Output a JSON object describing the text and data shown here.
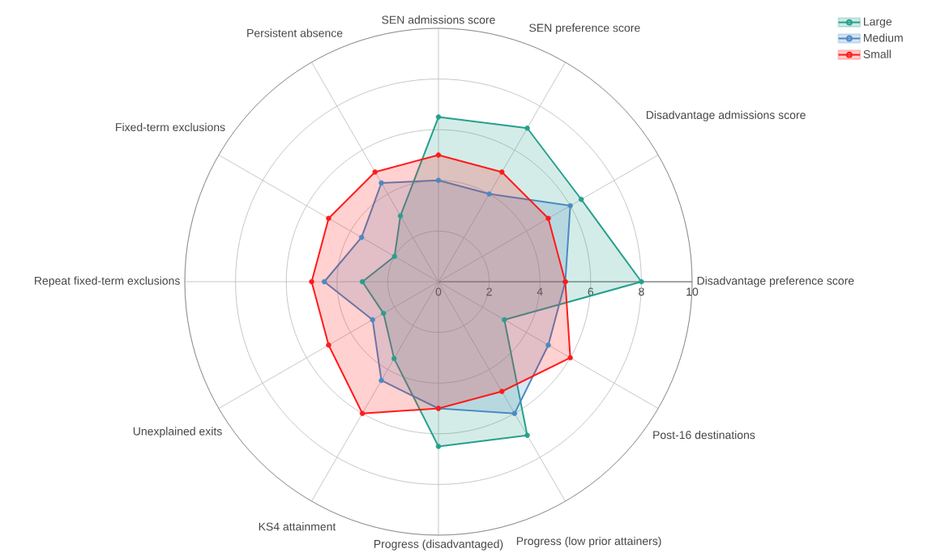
{
  "chart_data": {
    "type": "radar",
    "categories": [
      "SEN admissions score",
      "SEN preference score",
      "Disadvantage admissions score",
      "Disadvantage preference score",
      "Post-16 destinations",
      "Progress (low prior attainers)",
      "Progress (disadvantaged)",
      "KS4 attainment",
      "Unexplained exits",
      "Repeat fixed-term exclusions",
      "Fixed-term exclusions",
      "Persistent absence"
    ],
    "series": [
      {
        "name": "Large",
        "color": "#26a08e",
        "values": [
          6.5,
          7,
          6.5,
          8,
          3,
          7,
          6.5,
          3.5,
          2.5,
          3,
          2,
          3
        ]
      },
      {
        "name": "Medium",
        "color": "#4a8ac2",
        "values": [
          4,
          4,
          6,
          5,
          5,
          6,
          5,
          4.5,
          3,
          4.5,
          3.5,
          4.5
        ]
      },
      {
        "name": "Small",
        "color": "#ff1a1a",
        "values": [
          5,
          5,
          5,
          5,
          6,
          5,
          5,
          6,
          5,
          5,
          5,
          5
        ]
      }
    ],
    "ylim": [
      0,
      10
    ],
    "yticks": [
      0,
      2,
      4,
      6,
      8,
      10
    ],
    "grid": true,
    "legend": "top right",
    "marker": "circle"
  }
}
